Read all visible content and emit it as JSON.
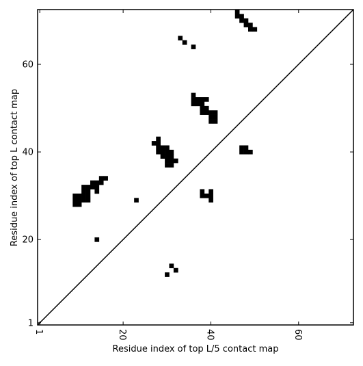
{
  "chart_data": {
    "type": "scatter",
    "xlabel": "Residue index of top L/5 contact map",
    "ylabel": "Residue index of top L contact map",
    "color": "#000000",
    "xlim": [
      0.5,
      72.5
    ],
    "ylim": [
      0.5,
      72.5
    ],
    "xticks": [
      1,
      20,
      40,
      60
    ],
    "yticks": [
      1,
      20,
      40,
      60
    ],
    "x": [
      46,
      46,
      47,
      47,
      48,
      48,
      49,
      49,
      50,
      33,
      34,
      36,
      36,
      36,
      37,
      38,
      39,
      36,
      37,
      38,
      38,
      39,
      38,
      39,
      40,
      41,
      40,
      41,
      40,
      41,
      28,
      27,
      28,
      28,
      29,
      30,
      28,
      29,
      30,
      31,
      29,
      30,
      31,
      30,
      31,
      32,
      30,
      31,
      15,
      16,
      13,
      14,
      15,
      11,
      12,
      13,
      14,
      11,
      12,
      14,
      9,
      10,
      11,
      12,
      9,
      10,
      11,
      12,
      9,
      10,
      23,
      14,
      47,
      48,
      47,
      48,
      49,
      38,
      40,
      38,
      39,
      40,
      40,
      31,
      32,
      30
    ],
    "values": [
      72,
      71,
      71,
      70,
      70,
      69,
      69,
      68,
      68,
      66,
      65,
      64,
      53,
      52,
      52,
      52,
      52,
      51,
      51,
      51,
      50,
      50,
      49,
      49,
      49,
      49,
      48,
      48,
      47,
      47,
      43,
      42,
      42,
      41,
      41,
      41,
      40,
      40,
      40,
      40,
      39,
      39,
      39,
      38,
      38,
      38,
      37,
      37,
      34,
      34,
      33,
      33,
      33,
      32,
      32,
      32,
      32,
      31,
      31,
      31,
      30,
      30,
      30,
      30,
      29,
      29,
      29,
      29,
      28,
      28,
      29,
      20,
      41,
      41,
      40,
      40,
      40,
      31,
      31,
      30,
      30,
      30,
      29,
      14,
      13,
      12
    ]
  }
}
